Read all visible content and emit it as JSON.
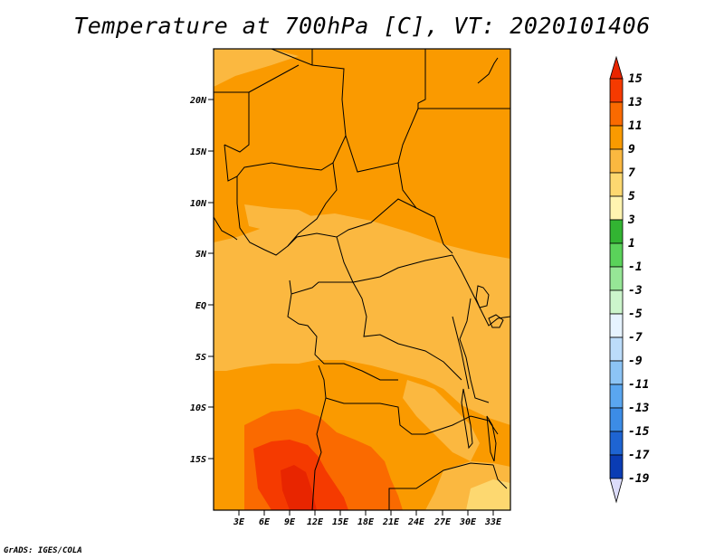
{
  "title": "Temperature at 700hPa [C], VT: 2020101406",
  "credit": "GrADS: IGES/COLA",
  "map": {
    "region": "Central Africa",
    "lon_labels": [
      "3E",
      "6E",
      "9E",
      "12E",
      "15E",
      "18E",
      "21E",
      "24E",
      "27E",
      "30E",
      "33E"
    ],
    "lat_labels": [
      "20N",
      "15N",
      "10N",
      "5N",
      "EQ",
      "5S",
      "10S",
      "15S"
    ]
  },
  "colorbar": {
    "labels": [
      "15",
      "13",
      "11",
      "9",
      "7",
      "5",
      "3",
      "1",
      "-1",
      "-3",
      "-5",
      "-7",
      "-9",
      "-11",
      "-13",
      "-15",
      "-17",
      "-19"
    ],
    "colors": {
      "gt15": "#e82500",
      "13_15": "#f53a00",
      "11_13": "#fa6a00",
      "9_11": "#fa9a00",
      "7_9": "#fbb840",
      "5_7": "#fdd870",
      "3_5": "#fff4b0",
      "1_3": "#32b432",
      "-1_1": "#5ad25a",
      "-3_-1": "#96e696",
      "-5_-3": "#ccf5cc",
      "-7_-5": "#e6f3ff",
      "-9_-7": "#bcdcfa",
      "-11_-9": "#8cc4f5",
      "-13_-11": "#5aa6f0",
      "-15_-13": "#3c8ce6",
      "-17_-15": "#1e64d2",
      "-19_-17": "#0a3cb4",
      "lt-19": "#000a70",
      "below": "#dcdcfa"
    }
  }
}
